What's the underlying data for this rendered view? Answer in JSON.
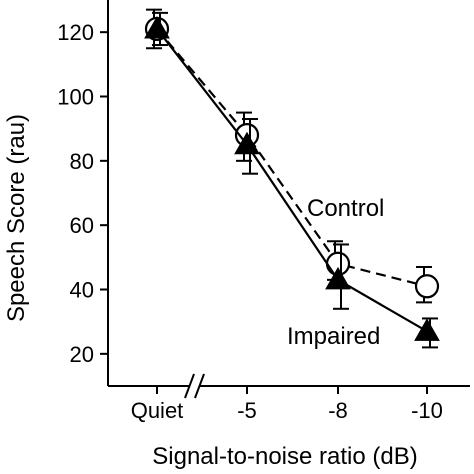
{
  "chart_data": {
    "type": "line",
    "xlabel": "Signal-to-noise ratio (dB)",
    "ylabel": "Speech Score (rau)",
    "categories": [
      "Quiet",
      "-5",
      "-8",
      "-10"
    ],
    "ylim": [
      10,
      130
    ],
    "yticks": [
      20,
      40,
      60,
      80,
      100,
      120
    ],
    "x_axis_break": "between Quiet and -5",
    "grid": false,
    "legend": "none; series labeled directly on plot",
    "series": [
      {
        "name": "Control",
        "marker": "open-circle",
        "line": "dashed",
        "values": [
          121,
          88,
          48,
          41
        ],
        "err_low": [
          115,
          80,
          43,
          36
        ],
        "err_high": [
          127,
          95,
          55,
          47
        ]
      },
      {
        "name": "Impaired",
        "marker": "filled-triangle",
        "line": "solid",
        "values": [
          121,
          85,
          43,
          27
        ],
        "err_low": [
          116,
          76,
          34,
          22
        ],
        "err_high": [
          126,
          93,
          54,
          31
        ]
      }
    ]
  }
}
